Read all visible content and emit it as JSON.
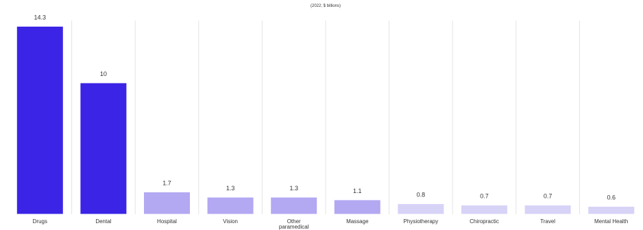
{
  "chart_data": {
    "type": "bar",
    "title": "",
    "subtitle": "(2022; $ billions)",
    "xlabel": "",
    "ylabel": "",
    "ylim": [
      0,
      15
    ],
    "grid": false,
    "legend": "none",
    "categories": [
      "Drugs",
      "Dental",
      "Hospital",
      "Vision",
      "Other paramedical",
      "Massage",
      "Physiotherapy",
      "Chiropractic",
      "Travel",
      "Mental Health"
    ],
    "values": [
      14.3,
      10,
      1.7,
      1.3,
      1.3,
      1.1,
      0.8,
      0.7,
      0.7,
      0.6
    ],
    "value_labels": [
      "14.3",
      "10",
      "1.7",
      "1.3",
      "1.3",
      "1.1",
      "0.8",
      "0.7",
      "0.7",
      "0.6"
    ],
    "colors": {
      "high": "#3b24e6",
      "mid": "#b3a8f2",
      "low": "#d7d3f7",
      "divider": "#e4e4e4"
    }
  }
}
